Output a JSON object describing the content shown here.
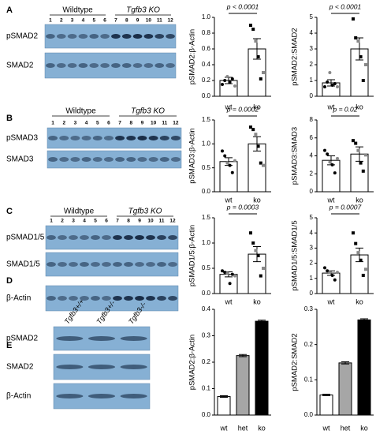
{
  "blots": [
    {
      "letter": "A",
      "groups": [
        "Wildtype",
        "Tgfb3 KO"
      ],
      "lanes": [
        "1",
        "2",
        "3",
        "4",
        "5",
        "6",
        "7",
        "8",
        "9",
        "10",
        "11",
        "12"
      ],
      "rows": [
        "pSMAD2",
        "SMAD2"
      ]
    },
    {
      "letter": "B",
      "groups": [
        "Wildtype",
        "Tgfb3 KO"
      ],
      "lanes": [
        "1",
        "2",
        "3",
        "4",
        "5",
        "6",
        "7",
        "8",
        "9",
        "10",
        "11",
        "12"
      ],
      "rows": [
        "pSMAD3",
        "SMAD3"
      ]
    },
    {
      "letter": "C",
      "groups": [
        "Wildtype",
        "Tgfb3 KO"
      ],
      "lanes": [
        "1",
        "2",
        "3",
        "4",
        "5",
        "6",
        "7",
        "8",
        "9",
        "10",
        "11",
        "12"
      ],
      "rows": [
        "pSMAD1/5",
        "SMAD1/5"
      ]
    },
    {
      "letter": "D",
      "rows": [
        "β-Actin"
      ]
    },
    {
      "letter": "E",
      "lanes": [
        "Tgfb3+/+",
        "Tgfb3+/-",
        "Tgfb3-/-"
      ],
      "rows": [
        "pSMAD2",
        "SMAD2",
        "β-Actin"
      ]
    }
  ],
  "chart_data": [
    {
      "type": "bar",
      "ylabel": "pSMAD2:β-Actin",
      "categories": [
        "wt",
        "ko"
      ],
      "values": [
        0.2,
        0.6
      ],
      "errors": [
        0.04,
        0.13
      ],
      "color": "#ffffff",
      "points": [
        [
          0.15,
          0.2,
          0.25,
          0.18,
          0.22,
          0.13
        ],
        [
          0.9,
          0.85,
          0.7,
          0.5,
          0.22,
          0.3
        ]
      ],
      "annotation": "p < 0.0001",
      "ylim": [
        0,
        1
      ],
      "yticks": [
        {
          "value": 0,
          "label": "0.0"
        },
        0.2,
        0.4,
        0.6,
        0.8,
        {
          "value": 1,
          "label": "1.0"
        }
      ]
    },
    {
      "type": "bar",
      "ylabel": "pSMAD2:SMAD2",
      "categories": [
        "wt",
        "ko"
      ],
      "values": [
        0.85,
        3.0
      ],
      "errors": [
        0.2,
        0.7
      ],
      "color": "#ffffff",
      "points": [
        [
          0.6,
          0.9,
          1.5,
          0.7,
          0.8,
          0.6
        ],
        [
          4.9,
          3.7,
          3.5,
          2.5,
          1.0,
          2.0
        ]
      ],
      "annotation": "p < 0.0001",
      "ylim": [
        0,
        5
      ],
      "yticks": [
        0,
        1,
        2,
        3,
        4,
        5
      ]
    },
    {
      "type": "bar",
      "ylabel": "pSMAD3:β-Actin",
      "categories": [
        "wt",
        "ko"
      ],
      "values": [
        0.63,
        1.0
      ],
      "errors": [
        0.08,
        0.15
      ],
      "color": "#ffffff",
      "points": [
        [
          0.85,
          0.75,
          0.6,
          0.55,
          0.4,
          0.65
        ],
        [
          1.35,
          1.3,
          1.2,
          0.95,
          0.6,
          0.55
        ]
      ],
      "annotation": "p = 0.0002",
      "ylim": [
        0,
        1.5
      ],
      "yticks": [
        {
          "value": 0,
          "label": "0.0"
        },
        0.5,
        {
          "value": 1,
          "label": "1.0"
        },
        1.5
      ]
    },
    {
      "type": "bar",
      "ylabel": "pSMAD3:SMAD3",
      "categories": [
        "wt",
        "ko"
      ],
      "values": [
        3.5,
        4.2
      ],
      "errors": [
        0.5,
        0.8
      ],
      "color": "#ffffff",
      "points": [
        [
          4.6,
          4.2,
          3.3,
          3.0,
          2.1,
          3.7
        ],
        [
          5.7,
          5.4,
          4.6,
          3.2,
          2.3,
          4.1
        ]
      ],
      "annotation": "p = 0.02",
      "ylim": [
        0,
        8
      ],
      "yticks": [
        0,
        2,
        4,
        6,
        8
      ]
    },
    {
      "type": "bar",
      "ylabel": "pSMAD1/5:β-Actin",
      "categories": [
        "wt",
        "ko"
      ],
      "values": [
        0.38,
        0.78
      ],
      "errors": [
        0.05,
        0.15
      ],
      "color": "#ffffff",
      "points": [
        [
          0.45,
          0.42,
          0.4,
          0.2,
          0.38,
          0.35
        ],
        [
          1.2,
          1.0,
          0.85,
          0.75,
          0.35,
          0.5
        ]
      ],
      "annotation": "p = 0.0003",
      "ylim": [
        0,
        1.5
      ],
      "yticks": [
        {
          "value": 0,
          "label": "0.0"
        },
        0.5,
        {
          "value": 1,
          "label": "1.0"
        },
        1.5
      ]
    },
    {
      "type": "bar",
      "ylabel": "pSMAD1/5:SMAD1/5",
      "categories": [
        "wt",
        "ko"
      ],
      "values": [
        1.35,
        2.55
      ],
      "errors": [
        0.15,
        0.45
      ],
      "color": "#ffffff",
      "points": [
        [
          1.7,
          1.5,
          1.4,
          1.2,
          0.9,
          1.4
        ],
        [
          4.0,
          3.3,
          2.7,
          2.2,
          1.2,
          1.6
        ]
      ],
      "annotation": "p = 0.0007",
      "ylim": [
        0,
        5
      ],
      "yticks": [
        0,
        1,
        2,
        3,
        4,
        5
      ]
    },
    {
      "type": "bar",
      "ylabel": "pSMAD2:β-Actin",
      "categories": [
        "wt",
        "het",
        "ko"
      ],
      "values": [
        0.07,
        0.225,
        0.355
      ],
      "errors": [
        0.003,
        0.004,
        0.004
      ],
      "colors": [
        "#ffffff",
        "#a6a6a6",
        "#000000"
      ],
      "ylim": [
        0,
        0.4
      ],
      "yticks": [
        {
          "value": 0,
          "label": "0.0"
        },
        0.1,
        0.2,
        0.3,
        0.4
      ]
    },
    {
      "type": "bar",
      "ylabel": "pSMAD2:SMAD2",
      "categories": [
        "wt",
        "het",
        "ko"
      ],
      "values": [
        0.057,
        0.148,
        0.27
      ],
      "errors": [
        0.002,
        0.003,
        0.003
      ],
      "colors": [
        "#ffffff",
        "#a6a6a6",
        "#000000"
      ],
      "ylim": [
        0,
        0.3
      ],
      "yticks": [
        {
          "value": 0,
          "label": "0.0"
        },
        0.1,
        0.2,
        0.3
      ]
    }
  ]
}
